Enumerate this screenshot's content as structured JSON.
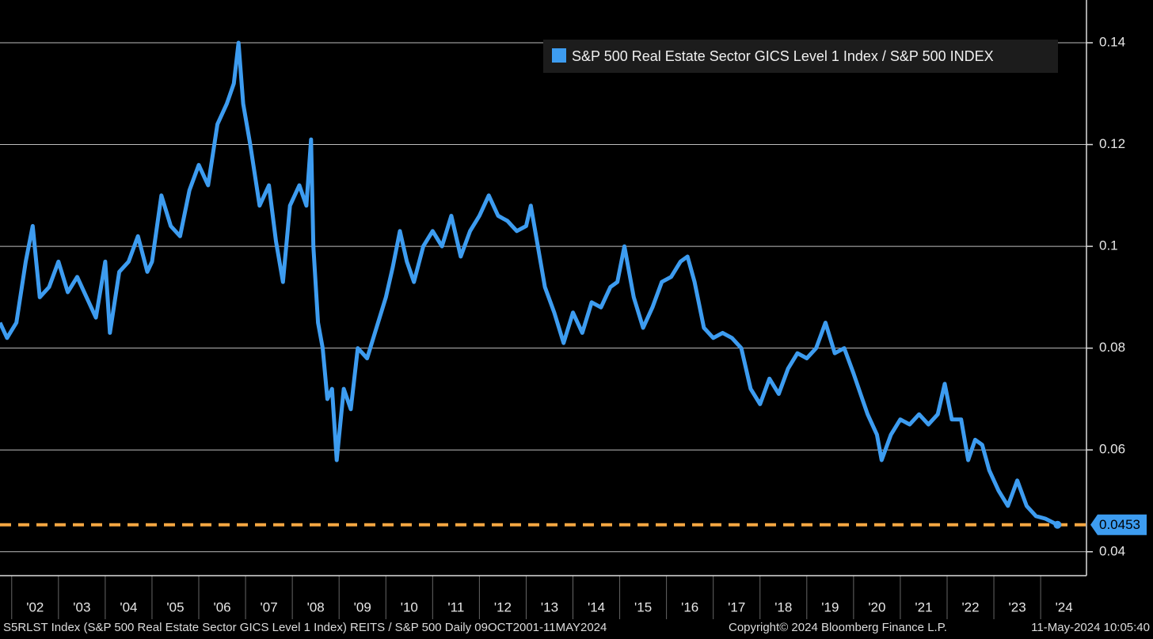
{
  "chart_data": {
    "type": "line",
    "x": [
      2001.75,
      2001.9,
      2002.1,
      2002.3,
      2002.45,
      2002.6,
      2002.8,
      2003.0,
      2003.2,
      2003.4,
      2003.6,
      2003.8,
      2004.0,
      2004.1,
      2004.3,
      2004.5,
      2004.7,
      2004.9,
      2005.0,
      2005.2,
      2005.4,
      2005.6,
      2005.8,
      2006.0,
      2006.2,
      2006.4,
      2006.6,
      2006.75,
      2006.85,
      2006.95,
      2007.1,
      2007.3,
      2007.5,
      2007.65,
      2007.8,
      2007.95,
      2008.15,
      2008.3,
      2008.4,
      2008.45,
      2008.55,
      2008.65,
      2008.75,
      2008.85,
      2008.95,
      2009.1,
      2009.25,
      2009.4,
      2009.6,
      2009.8,
      2010.0,
      2010.15,
      2010.3,
      2010.45,
      2010.6,
      2010.8,
      2011.0,
      2011.2,
      2011.4,
      2011.6,
      2011.8,
      2012.0,
      2012.2,
      2012.4,
      2012.6,
      2012.8,
      2013.0,
      2013.1,
      2013.25,
      2013.4,
      2013.6,
      2013.8,
      2014.0,
      2014.2,
      2014.4,
      2014.6,
      2014.8,
      2014.95,
      2015.1,
      2015.3,
      2015.5,
      2015.7,
      2015.9,
      2016.1,
      2016.3,
      2016.45,
      2016.6,
      2016.8,
      2017.0,
      2017.2,
      2017.4,
      2017.6,
      2017.8,
      2018.0,
      2018.2,
      2018.4,
      2018.6,
      2018.8,
      2019.0,
      2019.2,
      2019.4,
      2019.6,
      2019.8,
      2020.0,
      2020.15,
      2020.3,
      2020.5,
      2020.6,
      2020.8,
      2021.0,
      2021.2,
      2021.4,
      2021.6,
      2021.8,
      2021.95,
      2022.1,
      2022.3,
      2022.45,
      2022.6,
      2022.75,
      2022.9,
      2023.1,
      2023.3,
      2023.5,
      2023.7,
      2023.9,
      2024.1,
      2024.36
    ],
    "series": [
      {
        "name": "S&P 500 Real Estate Sector GICS Level 1 Index / S&P 500 INDEX",
        "color": "#3d9cf0",
        "values": [
          0.085,
          0.082,
          0.085,
          0.097,
          0.104,
          0.09,
          0.092,
          0.097,
          0.091,
          0.094,
          0.09,
          0.086,
          0.097,
          0.083,
          0.095,
          0.097,
          0.102,
          0.095,
          0.097,
          0.11,
          0.104,
          0.102,
          0.111,
          0.116,
          0.112,
          0.124,
          0.128,
          0.132,
          0.14,
          0.128,
          0.12,
          0.108,
          0.112,
          0.101,
          0.093,
          0.108,
          0.112,
          0.108,
          0.121,
          0.1,
          0.085,
          0.08,
          0.07,
          0.072,
          0.058,
          0.072,
          0.068,
          0.08,
          0.078,
          0.084,
          0.09,
          0.096,
          0.103,
          0.097,
          0.093,
          0.1,
          0.103,
          0.1,
          0.106,
          0.098,
          0.103,
          0.106,
          0.11,
          0.106,
          0.105,
          0.103,
          0.104,
          0.108,
          0.1,
          0.092,
          0.087,
          0.081,
          0.087,
          0.083,
          0.089,
          0.088,
          0.092,
          0.093,
          0.1,
          0.09,
          0.084,
          0.088,
          0.093,
          0.094,
          0.097,
          0.098,
          0.093,
          0.084,
          0.082,
          0.083,
          0.082,
          0.08,
          0.072,
          0.069,
          0.074,
          0.071,
          0.076,
          0.079,
          0.078,
          0.08,
          0.085,
          0.079,
          0.08,
          0.075,
          0.071,
          0.067,
          0.063,
          0.058,
          0.063,
          0.066,
          0.065,
          0.067,
          0.065,
          0.067,
          0.073,
          0.066,
          0.066,
          0.058,
          0.062,
          0.061,
          0.056,
          0.052,
          0.049,
          0.054,
          0.049,
          0.047,
          0.0465,
          0.0453
        ]
      }
    ],
    "last_value": 0.0453,
    "last_value_color": "#f5a742",
    "xlim": [
      2001.75,
      2024.98
    ],
    "xticks": [
      {
        "value": 2002,
        "label": "'02"
      },
      {
        "value": 2003,
        "label": "'03"
      },
      {
        "value": 2004,
        "label": "'04"
      },
      {
        "value": 2005,
        "label": "'05"
      },
      {
        "value": 2006,
        "label": "'06"
      },
      {
        "value": 2007,
        "label": "'07"
      },
      {
        "value": 2008,
        "label": "'08"
      },
      {
        "value": 2009,
        "label": "'09"
      },
      {
        "value": 2010,
        "label": "'10"
      },
      {
        "value": 2011,
        "label": "'11"
      },
      {
        "value": 2012,
        "label": "'12"
      },
      {
        "value": 2013,
        "label": "'13"
      },
      {
        "value": 2014,
        "label": "'14"
      },
      {
        "value": 2015,
        "label": "'15"
      },
      {
        "value": 2016,
        "label": "'16"
      },
      {
        "value": 2017,
        "label": "'17"
      },
      {
        "value": 2018,
        "label": "'18"
      },
      {
        "value": 2019,
        "label": "'19"
      },
      {
        "value": 2020,
        "label": "'20"
      },
      {
        "value": 2021,
        "label": "'21"
      },
      {
        "value": 2022,
        "label": "'22"
      },
      {
        "value": 2023,
        "label": "'23"
      },
      {
        "value": 2024,
        "label": "'24"
      }
    ],
    "ylim": [
      0.0353,
      0.1484
    ],
    "yticks": [
      0.04,
      0.06,
      0.08,
      0.1,
      0.12,
      0.14
    ],
    "grid": true,
    "legend": "top-right",
    "footer": {
      "source": "S5RLST Index (S&P 500 Real Estate Sector GICS Level 1 Index) REITS / S&P 500  Daily 09OCT2001-11MAY2024",
      "copyright": "Copyright© 2024 Bloomberg Finance L.P.",
      "timestamp": "11-May-2024 10:05:40"
    }
  }
}
